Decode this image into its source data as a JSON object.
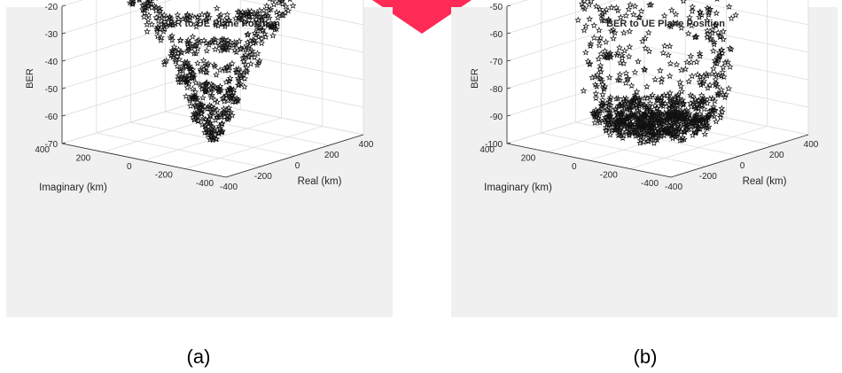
{
  "figure": {
    "captions": [
      "(a)",
      "(b)"
    ],
    "accent_color": "#ff2a55"
  },
  "chart_data": [
    {
      "type": "scatter",
      "projection": "3d",
      "marker": "pentagram",
      "title": "BER to UE Plane Position",
      "xlabel": "Real (km)",
      "ylabel": "Imaginary (km)",
      "zlabel": "BER",
      "xlim": [
        -400,
        400
      ],
      "ylim": [
        -400,
        400
      ],
      "zlim": [
        -70,
        -20
      ],
      "xticks": [
        -400,
        -200,
        0,
        200,
        400
      ],
      "yticks": [
        -400,
        -200,
        0,
        200,
        400
      ],
      "zticks": [
        -70,
        -60,
        -50,
        -40,
        -30,
        -20
      ],
      "grid": true,
      "series": [
        {
          "shape": "descending spiral funnel",
          "rings": [
            {
              "z": -20,
              "radius_km": 300,
              "count": 160
            },
            {
              "z": -30,
              "radius_km": 235,
              "count": 120
            },
            {
              "z": -40,
              "radius_km": 175,
              "count": 95
            },
            {
              "z": -48,
              "radius_km": 130,
              "count": 80
            },
            {
              "z": -55,
              "radius_km": 95,
              "count": 65
            },
            {
              "z": -61,
              "radius_km": 70,
              "count": 50
            },
            {
              "z": -66,
              "radius_km": 40,
              "count": 30
            },
            {
              "z": -69,
              "radius_km": 15,
              "count": 12
            }
          ]
        }
      ]
    },
    {
      "type": "scatter",
      "projection": "3d",
      "marker": "pentagram",
      "title": "BER to UE Plane Position",
      "xlabel": "Real (km)",
      "ylabel": "Imaginary (km)",
      "zlabel": "BER",
      "xlim": [
        -400,
        400
      ],
      "ylim": [
        -400,
        400
      ],
      "zlim": [
        -100,
        -50
      ],
      "xticks": [
        -400,
        -200,
        0,
        200,
        400
      ],
      "yticks": [
        -400,
        -200,
        0,
        200,
        400
      ],
      "zticks": [
        -100,
        -90,
        -80,
        -70,
        -60,
        -50
      ],
      "grid": true,
      "series": [
        {
          "shape": "dense disc at bottom with sparse walls",
          "rings": [
            {
              "z": -50,
              "radius_km": 290,
              "count": 45
            },
            {
              "z": -58,
              "radius_km": 285,
              "count": 45
            },
            {
              "z": -66,
              "radius_km": 280,
              "count": 55
            },
            {
              "z": -74,
              "radius_km": 275,
              "count": 60
            },
            {
              "z": -82,
              "radius_km": 265,
              "count": 70
            },
            {
              "z": -90,
              "radius_km": 250,
              "count": 300
            },
            {
              "z": -95,
              "radius_km": 200,
              "count": 350
            }
          ]
        }
      ]
    }
  ]
}
